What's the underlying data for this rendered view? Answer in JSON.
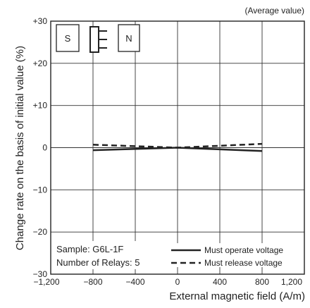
{
  "chart_data": {
    "type": "line",
    "note": "(Average value)",
    "xlabel": "External magnetic field (A/m)",
    "ylabel": "Change rate on the basis of initial value (%)",
    "xlim": [
      -1200,
      1200
    ],
    "ylim": [
      -30,
      30
    ],
    "x_ticks": [
      -1200,
      -800,
      -400,
      0,
      400,
      800,
      1200
    ],
    "x_tick_labels": [
      "−1,200",
      "−800",
      "−400",
      "0",
      "400",
      "800",
      "1,200"
    ],
    "y_ticks": [
      30,
      20,
      10,
      0,
      -10,
      -20,
      -30
    ],
    "y_tick_labels": [
      "+30",
      "+20",
      "+10",
      "0",
      "−10",
      "−20",
      "−30"
    ],
    "grid": true,
    "series": [
      {
        "name": "Must operate voltage",
        "style": "solid",
        "color": "#222222",
        "x": [
          -800,
          0,
          800
        ],
        "y": [
          -0.6,
          0,
          -0.8
        ]
      },
      {
        "name": "Must release voltage",
        "style": "dashed",
        "color": "#222222",
        "x": [
          -800,
          0,
          800
        ],
        "y": [
          0.7,
          0,
          0.9
        ]
      }
    ],
    "sample_label": "Sample: G6L-1F",
    "relays_label": "Number of Relays: 5",
    "legend_position": "bottom-right",
    "magnet_labels": {
      "south": "S",
      "north": "N"
    }
  }
}
